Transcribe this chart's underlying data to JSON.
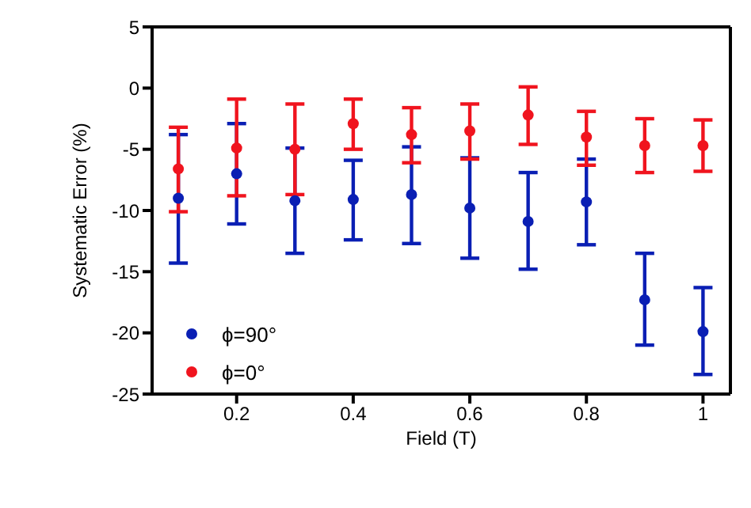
{
  "chart_data": {
    "type": "scatter",
    "xlabel": "Field (T)",
    "ylabel": "Systematic Error (%)",
    "x": [
      0.1,
      0.2,
      0.3,
      0.4,
      0.5,
      0.6,
      0.7,
      0.8,
      0.9,
      1.0
    ],
    "series": [
      {
        "name": "ϕ=90°",
        "color": "#0a1fb4",
        "values": [
          -9.0,
          -7.0,
          -9.2,
          -9.1,
          -8.7,
          -9.8,
          -10.9,
          -9.3,
          -17.3,
          -19.9
        ],
        "errors": [
          [
            -14.3,
            -3.8
          ],
          [
            -11.1,
            -2.9
          ],
          [
            -13.5,
            -4.9
          ],
          [
            -12.4,
            -5.9
          ],
          [
            -12.7,
            -4.8
          ],
          [
            -13.9,
            -5.7
          ],
          [
            -14.8,
            -6.9
          ],
          [
            -12.8,
            -5.8
          ],
          [
            -21.0,
            -13.5
          ],
          [
            -23.4,
            -16.3
          ]
        ]
      },
      {
        "name": "ϕ=0°",
        "color": "#f0141e",
        "values": [
          -6.6,
          -4.9,
          -5.0,
          -2.9,
          -3.8,
          -3.5,
          -2.2,
          -4.0,
          -4.7,
          -4.7
        ],
        "errors": [
          [
            -10.1,
            -3.2
          ],
          [
            -8.8,
            -0.9
          ],
          [
            -8.7,
            -1.3
          ],
          [
            -5.0,
            -0.9
          ],
          [
            -6.1,
            -1.6
          ],
          [
            -5.8,
            -1.3
          ],
          [
            -4.6,
            0.1
          ],
          [
            -6.3,
            -1.9
          ],
          [
            -6.9,
            -2.5
          ],
          [
            -6.8,
            -2.6
          ]
        ]
      }
    ],
    "xlim": [
      0.055,
      1.047
    ],
    "xticks": [
      0.2,
      0.4,
      0.6,
      0.8,
      1
    ],
    "ylim": [
      -25,
      5
    ],
    "yticks": [
      -25,
      -20,
      -15,
      -10,
      -5,
      0,
      5
    ],
    "grid": false,
    "legend": "bottom left",
    "marker": "circle"
  }
}
